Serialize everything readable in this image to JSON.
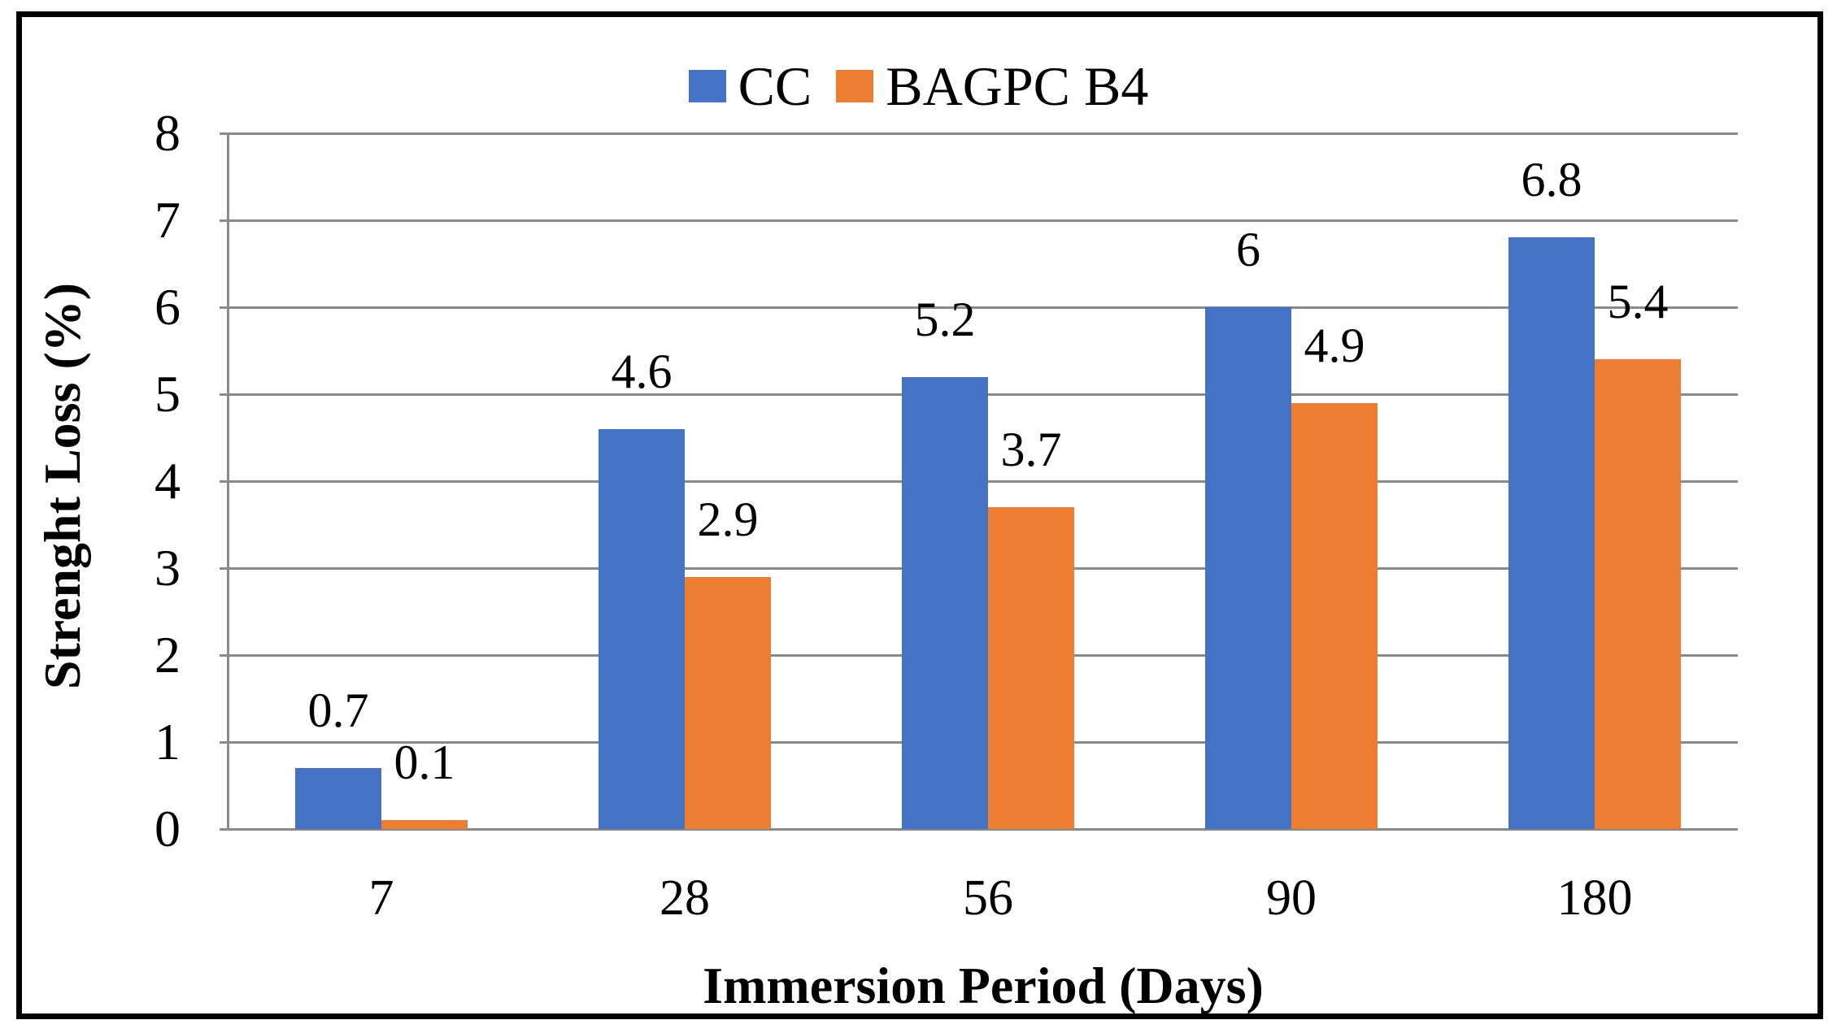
{
  "chart_data": {
    "type": "bar",
    "title": "",
    "categories": [
      "7",
      "28",
      "56",
      "90",
      "180"
    ],
    "series": [
      {
        "name": "CC",
        "color": "#4472C4",
        "values": [
          0.7,
          4.6,
          5.2,
          6,
          6.8
        ]
      },
      {
        "name": "BAGPC B4",
        "color": "#ED7D31",
        "values": [
          0.1,
          2.9,
          3.7,
          4.9,
          5.4
        ]
      }
    ],
    "xlabel": "Immersion Period (Days)",
    "ylabel": "Strenght Loss (%)",
    "ylim": [
      0,
      8
    ],
    "ytick_step": 1,
    "grid": true,
    "data_labels": true,
    "legend_position": "top-center"
  },
  "colors": {
    "gridline": "#898989",
    "axis_line": "#8a8a8a",
    "frame_border": "#000000",
    "text": "#000000",
    "background": "#ffffff"
  }
}
